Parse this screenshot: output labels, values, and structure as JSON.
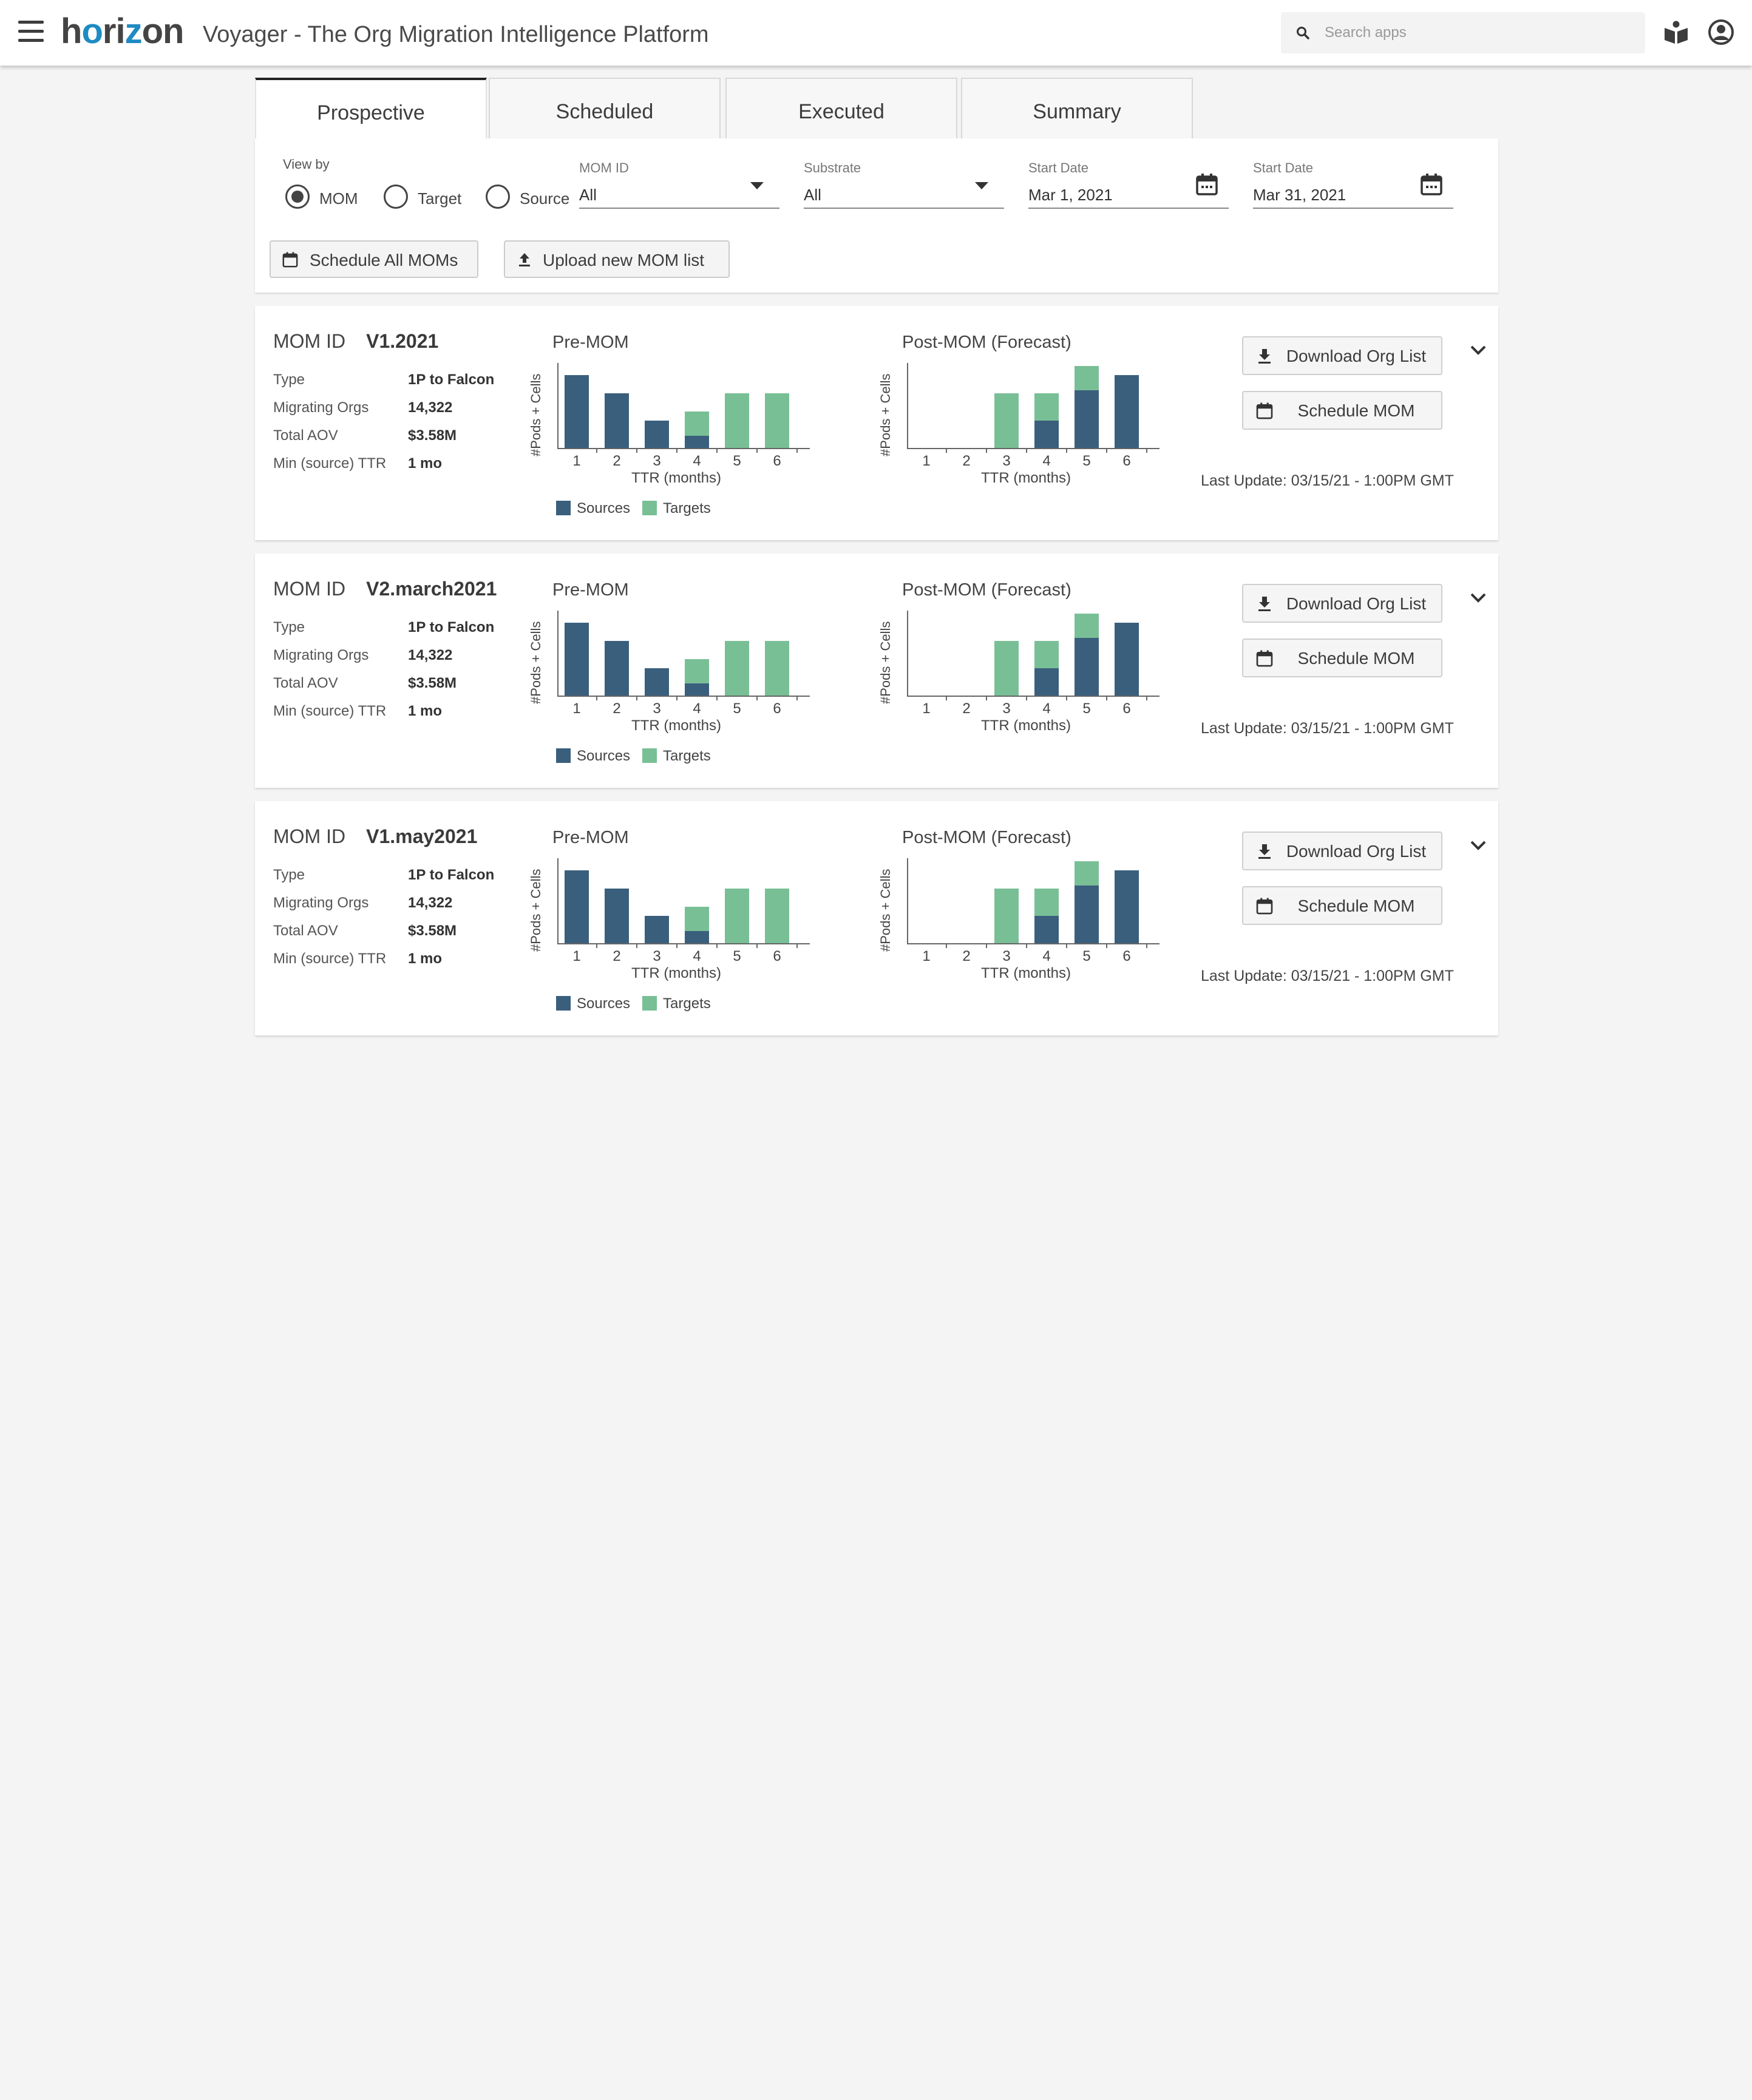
{
  "header": {
    "logo_parts": [
      "h",
      "o",
      "ri",
      "z",
      "on"
    ],
    "app_title": "Voyager - The Org Migration Intelligence Platform",
    "search_placeholder": "Search apps",
    "icons": [
      "menu-icon",
      "search-icon",
      "help-book-icon",
      "user-avatar-icon"
    ]
  },
  "tabs": [
    {
      "label": "Prospective",
      "active": true
    },
    {
      "label": "Scheduled",
      "active": false
    },
    {
      "label": "Executed",
      "active": false
    },
    {
      "label": "Summary",
      "active": false
    }
  ],
  "filters": {
    "view_by_label": "View by",
    "view_options": [
      {
        "label": "MOM",
        "selected": true
      },
      {
        "label": "Target",
        "selected": false
      },
      {
        "label": "Source",
        "selected": false
      }
    ],
    "mom_id": {
      "label": "MOM ID",
      "value": "All"
    },
    "substrate": {
      "label": "Substrate",
      "value": "All"
    },
    "start_date_1": {
      "label": "Start Date",
      "value": "Mar 1, 2021"
    },
    "start_date_2": {
      "label": "Start Date",
      "value": "Mar 31, 2021"
    },
    "schedule_all_label": "Schedule All MOMs",
    "upload_label": "Upload new MOM list"
  },
  "labels": {
    "mom_id": "MOM ID",
    "type": "Type",
    "migrating_orgs": "Migrating Orgs",
    "total_aov": "Total AOV",
    "min_ttr": "Min (source) TTR",
    "download": "Download Org List",
    "schedule": "Schedule MOM"
  },
  "colors": {
    "sources": "#3a5f7d",
    "targets": "#79bf96"
  },
  "cards": [
    {
      "mom_id": "V1.2021",
      "type": "1P to Falcon",
      "migrating_orgs": "14,322",
      "total_aov": "$3.58M",
      "min_ttr": "1 mo",
      "last_update": "Last Update: 03/15/21 - 1:00PM GMT"
    },
    {
      "mom_id": "V2.march2021",
      "type": "1P to Falcon",
      "migrating_orgs": "14,322",
      "total_aov": "$3.58M",
      "min_ttr": "1 mo",
      "last_update": "Last Update: 03/15/21 - 1:00PM GMT"
    },
    {
      "mom_id": "V1.may2021",
      "type": "1P to Falcon",
      "migrating_orgs": "14,322",
      "total_aov": "$3.58M",
      "min_ttr": "1 mo",
      "last_update": "Last Update: 03/15/21 - 1:00PM GMT"
    }
  ],
  "chart_data": [
    {
      "type": "bar",
      "stacked": true,
      "title": "Pre-MOM",
      "xlabel": "TTR (months)",
      "ylabel": "#Pods + Cells",
      "categories": [
        "1",
        "2",
        "3",
        "4",
        "5",
        "6"
      ],
      "series": [
        {
          "name": "Sources",
          "values": [
            12,
            9,
            4.5,
            2,
            0,
            0
          ]
        },
        {
          "name": "Targets",
          "values": [
            0,
            0,
            0,
            4,
            9,
            9
          ]
        }
      ],
      "ylim": [
        0,
        14
      ],
      "legend": "bottom"
    },
    {
      "type": "bar",
      "stacked": true,
      "title": "Post-MOM (Forecast)",
      "xlabel": "TTR (months)",
      "ylabel": "#Pods + Cells",
      "categories": [
        "1",
        "2",
        "3",
        "4",
        "5",
        "6"
      ],
      "series": [
        {
          "name": "Sources",
          "values": [
            0,
            0,
            0,
            4.5,
            9.5,
            12
          ]
        },
        {
          "name": "Targets",
          "values": [
            0,
            0,
            9,
            4.5,
            4,
            0
          ]
        }
      ],
      "ylim": [
        0,
        14
      ]
    }
  ]
}
